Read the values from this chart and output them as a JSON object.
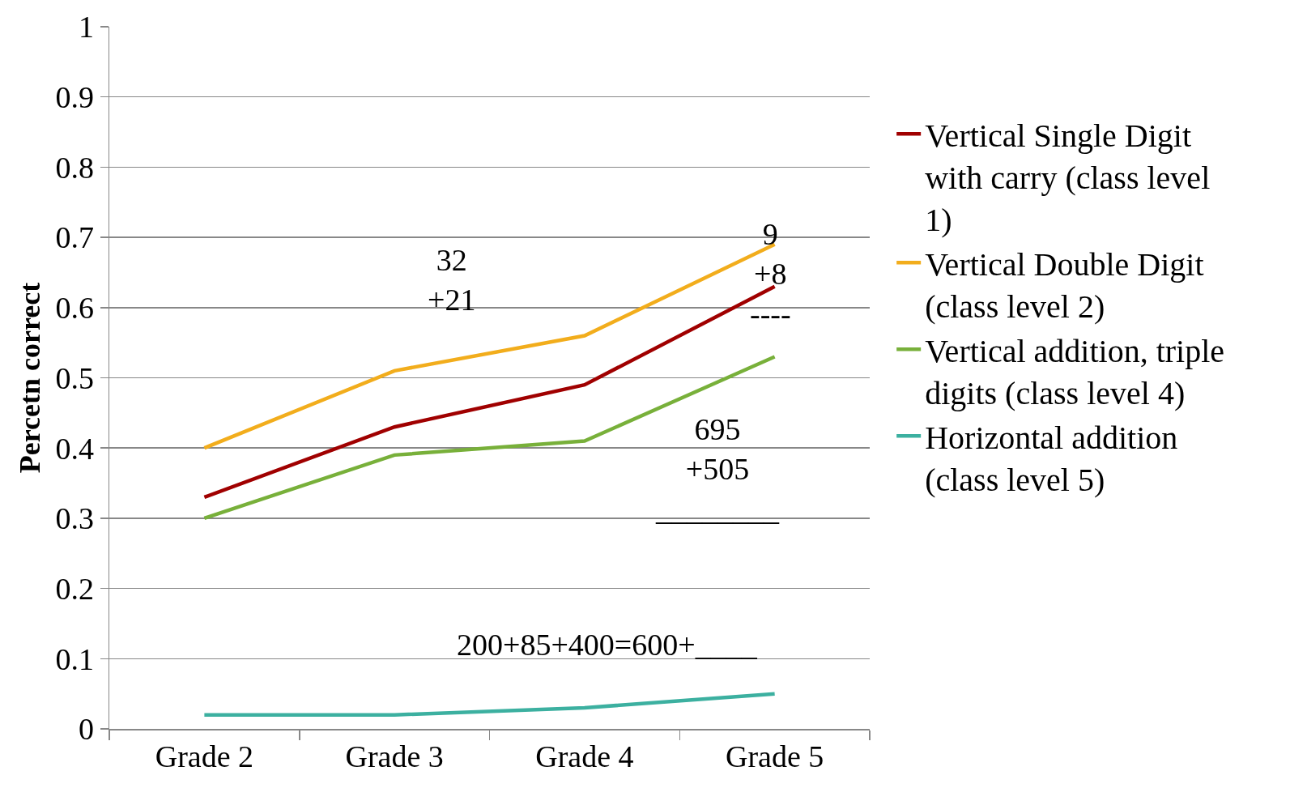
{
  "chart_data": {
    "type": "line",
    "ylabel": "Percetn correct",
    "categories": [
      "Grade 2",
      "Grade 3",
      "Grade 4",
      "Grade 5"
    ],
    "series": [
      {
        "name": "Vertical Single Digit with carry (class level 1)",
        "color": "#a00000",
        "values": [
          0.33,
          0.43,
          0.49,
          0.63
        ]
      },
      {
        "name": "Vertical Double Digit (class level 2)",
        "color": "#f2ad1c",
        "values": [
          0.4,
          0.51,
          0.56,
          0.69
        ]
      },
      {
        "name": "Vertical addition, triple digits (class level 4)",
        "color": "#78b03a",
        "values": [
          0.3,
          0.39,
          0.41,
          0.53
        ]
      },
      {
        "name": "Horizontal addition (class level 5)",
        "color": "#3cb0a0",
        "values": [
          0.02,
          0.02,
          0.03,
          0.05
        ]
      }
    ],
    "ylim": [
      0,
      1
    ],
    "yticks": [
      0,
      0.1,
      0.2,
      0.3,
      0.4,
      0.5,
      0.6,
      0.7,
      0.8,
      0.9,
      1
    ],
    "grid": "y",
    "legend": "right",
    "annotations": [
      "32\n+21",
      "9\n+8\n----",
      "695\n+505\n________",
      "200+85+400=600+____"
    ]
  }
}
